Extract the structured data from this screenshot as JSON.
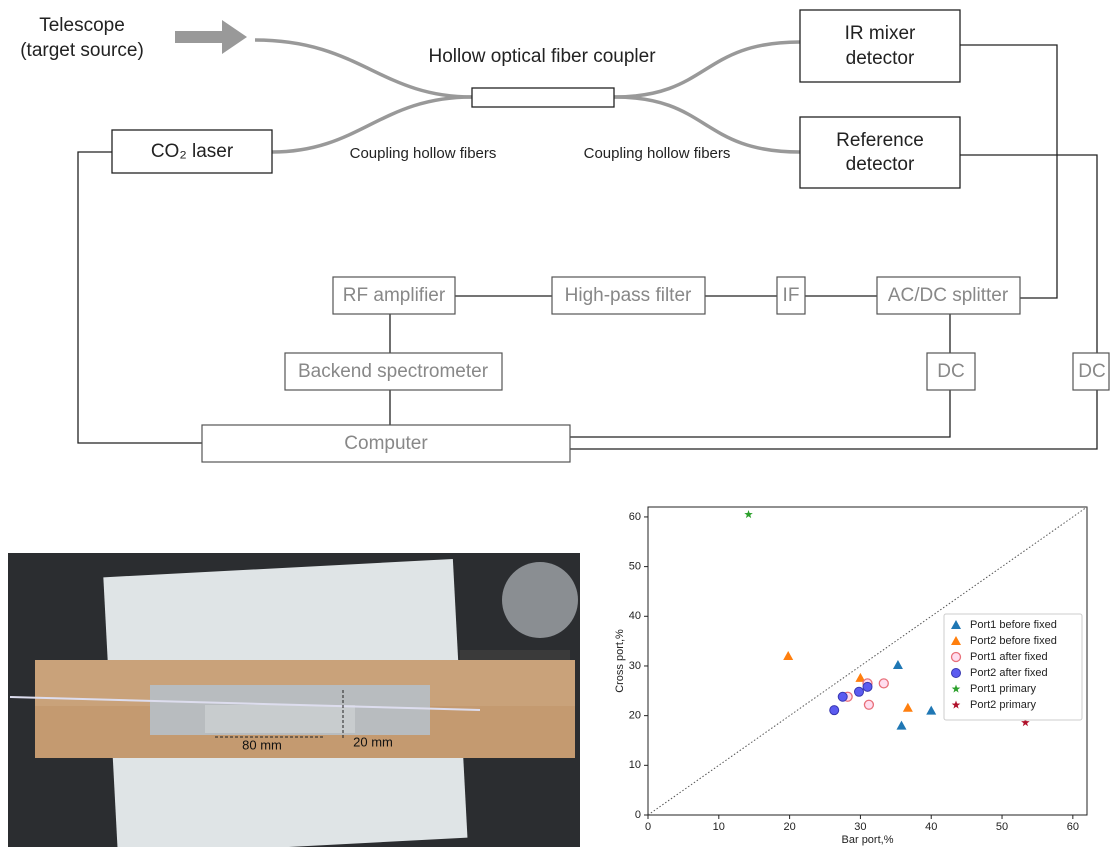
{
  "diagram": {
    "telescope": [
      "Telescope",
      "(target source)"
    ],
    "coupler": "Hollow optical fiber coupler",
    "ir_mixer": [
      "IR mixer",
      "detector"
    ],
    "reference": [
      "Reference",
      "detector"
    ],
    "laser": "CO₂ laser",
    "fibers_left": "Coupling hollow fibers",
    "fibers_right": "Coupling hollow fibers",
    "rf_amplifier": "RF amplifier",
    "high_pass": "High-pass filter",
    "if": "IF",
    "acdc": "AC/DC splitter",
    "backend": "Backend spectrometer",
    "dc1": "DC",
    "dc2": "DC",
    "computer": "Computer"
  },
  "photo": {
    "label_80": "80 mm",
    "label_20": "20 mm"
  },
  "chart_data": {
    "type": "scatter",
    "x_label": "Bar port,%",
    "y_label": "Cross port,%",
    "xlim": [
      0,
      62
    ],
    "ylim": [
      0,
      62
    ],
    "xticks": [
      0,
      10,
      20,
      30,
      40,
      50,
      60
    ],
    "yticks": [
      0,
      10,
      20,
      30,
      40,
      50,
      60
    ],
    "legend": "center right",
    "series": [
      {
        "name": "Port1 before fixed",
        "color": "#1f77b4",
        "marker": "triangle",
        "x": [
          35.3,
          35.8,
          40
        ],
        "values": [
          30.2,
          18,
          21
        ]
      },
      {
        "name": "Port2 before fixed",
        "color": "#ff7f0e",
        "marker": "triangle",
        "x": [
          19.8,
          30,
          36.7
        ],
        "values": [
          32,
          27.6,
          21.6
        ]
      },
      {
        "name": "Port1 after fixed",
        "color": "#e8707a",
        "marker": "circle-open",
        "x": [
          28.2,
          31,
          31.2,
          33.3
        ],
        "values": [
          23.8,
          26.5,
          22.2,
          26.5
        ]
      },
      {
        "name": "Port2 after fixed",
        "color": "#5b5bf0",
        "marker": "circle",
        "x": [
          26.3,
          27.5,
          29.8,
          31
        ],
        "values": [
          21.1,
          23.8,
          24.8,
          25.8
        ]
      },
      {
        "name": "Port1 primary",
        "color": "#2ca02c",
        "marker": "star",
        "x": [
          14.2
        ],
        "values": [
          60.5
        ]
      },
      {
        "name": "Port2 primary",
        "color": "#b0102a",
        "marker": "star",
        "x": [
          53.3
        ],
        "values": [
          18.6
        ]
      }
    ]
  }
}
